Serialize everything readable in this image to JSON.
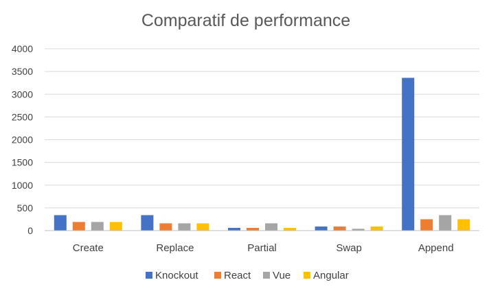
{
  "chart_data": {
    "type": "bar",
    "title": "Comparatif de performance",
    "categories": [
      "Create",
      "Replace",
      "Partial",
      "Swap",
      "Append"
    ],
    "series": [
      {
        "name": "Knockout",
        "color": "#4472C4",
        "values": [
          340,
          340,
          60,
          90,
          3360
        ]
      },
      {
        "name": "React",
        "color": "#ED7D31",
        "values": [
          190,
          160,
          60,
          90,
          250
        ]
      },
      {
        "name": "Vue",
        "color": "#A5A5A5",
        "values": [
          190,
          160,
          160,
          40,
          340
        ]
      },
      {
        "name": "Angular",
        "color": "#FFC000",
        "values": [
          190,
          160,
          60,
          90,
          250
        ]
      }
    ],
    "ylim": [
      0,
      4000
    ],
    "yticks": [
      0,
      500,
      1000,
      1500,
      2000,
      2500,
      3000,
      3500,
      4000
    ],
    "grid": true,
    "legend": "bottom"
  }
}
